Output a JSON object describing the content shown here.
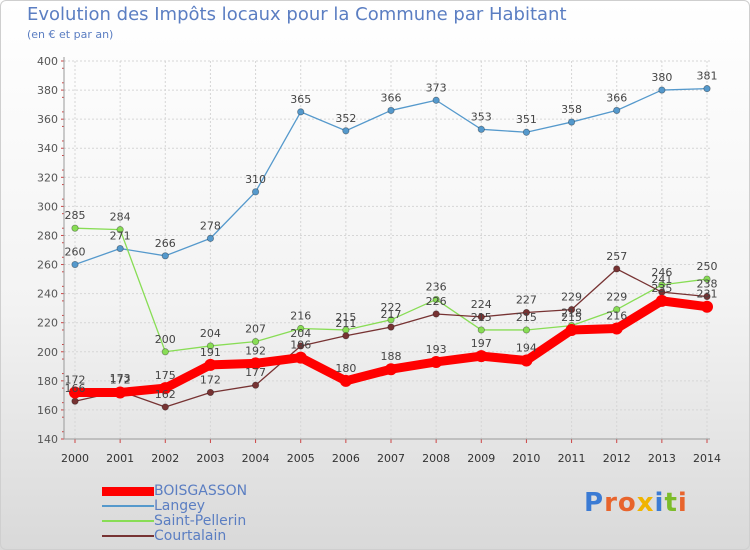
{
  "header": {
    "title": "Evolution des Impôts locaux pour la Commune par Habitant",
    "subtitle": "(en € et par an)"
  },
  "chart_data": {
    "type": "line",
    "title": "Evolution des Impôts locaux pour la Commune par Habitant",
    "ylabel": "(en € et par an)",
    "xlabel": "",
    "ylim": [
      140,
      400
    ],
    "y_ticks": [
      140,
      160,
      180,
      200,
      220,
      240,
      260,
      280,
      300,
      320,
      340,
      360,
      380,
      400
    ],
    "categories": [
      "2000",
      "2001",
      "2002",
      "2003",
      "2004",
      "2005",
      "2006",
      "2007",
      "2008",
      "2009",
      "2010",
      "2011",
      "2012",
      "2013",
      "2014"
    ],
    "grid": true,
    "legend_position": "bottom-left",
    "series": [
      {
        "name": "BOISGASSON",
        "color": "#ff0000",
        "values": [
          172,
          172,
          175,
          191,
          192,
          196,
          180,
          188,
          193,
          197,
          194,
          215,
          216,
          235,
          231
        ]
      },
      {
        "name": "Langey",
        "color": "#5599cc",
        "values": [
          260,
          271,
          266,
          278,
          310,
          365,
          352,
          366,
          373,
          353,
          351,
          358,
          366,
          380,
          381
        ]
      },
      {
        "name": "Saint-Pellerin",
        "color": "#88dd55",
        "values": [
          285,
          284,
          200,
          204,
          207,
          216,
          215,
          222,
          236,
          215,
          215,
          218,
          229,
          246,
          250
        ]
      },
      {
        "name": "Courtalain",
        "color": "#773333",
        "values": [
          166,
          173,
          162,
          172,
          177,
          204,
          211,
          217,
          226,
          224,
          227,
          229,
          257,
          241,
          238
        ]
      }
    ]
  },
  "logo": {
    "text": "Proxiti",
    "colors": [
      "#3b7bd4",
      "#e8642c",
      "#e8642c",
      "#f0b400",
      "#3b7bd4",
      "#7cbc2a",
      "#e8642c"
    ]
  }
}
